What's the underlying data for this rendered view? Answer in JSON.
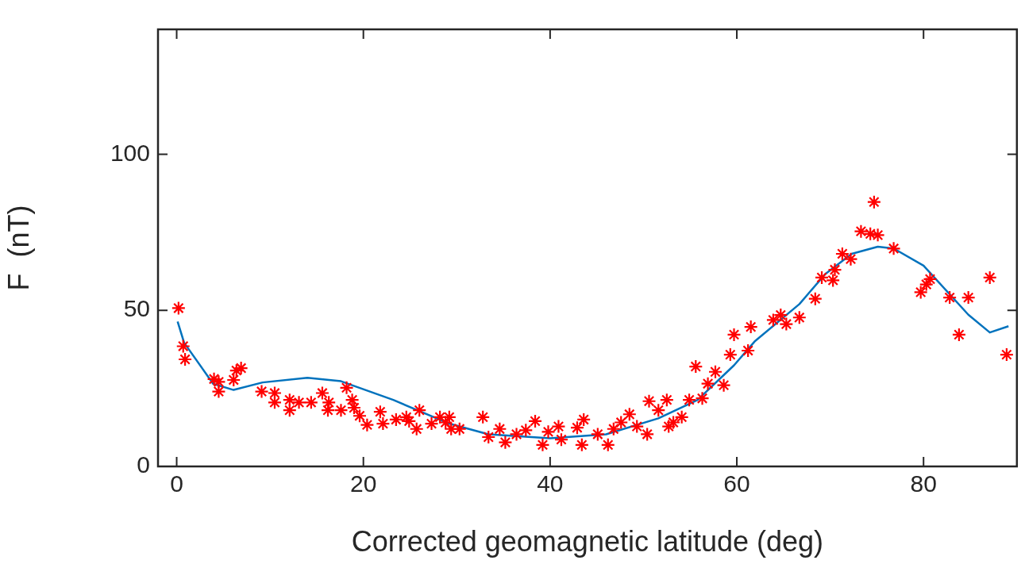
{
  "chart_data": {
    "type": "scatter",
    "xlabel": "Corrected geomagnetic latitude (deg)",
    "ylabel": "F  (nT)",
    "xlim": [
      -2,
      90
    ],
    "ylim": [
      0,
      140
    ],
    "xticks": [
      0,
      20,
      40,
      60,
      80
    ],
    "yticks": [
      0,
      50,
      100
    ],
    "grid": false,
    "legend": false,
    "marker": "cross",
    "series": [
      {
        "color": "#ff0000",
        "x": [
          0.2,
          0.7,
          0.9,
          4.0,
          4.5,
          4.5,
          6.1,
          6.4,
          6.9,
          9.1,
          10.5,
          10.5,
          12.1,
          12.1,
          13.1,
          14.4,
          15.6,
          16.3,
          16.2,
          17.6,
          18.2,
          18.8,
          19.0,
          19.6,
          20.4,
          21.8,
          22.1,
          23.5,
          24.6,
          24.9,
          25.7,
          26.0,
          27.3,
          28.2,
          28.8,
          29.4,
          29.2,
          30.3,
          32.8,
          33.4,
          34.6,
          35.2,
          36.4,
          37.4,
          38.4,
          39.2,
          39.8,
          40.9,
          41.2,
          42.9,
          43.6,
          43.4,
          45.1,
          46.2,
          46.8,
          47.6,
          48.5,
          49.3,
          50.4,
          50.6,
          51.6,
          52.5,
          52.7,
          53.2,
          54.1,
          54.9,
          56.3,
          57.7,
          58.6,
          55.6,
          56.9,
          59.3,
          59.7,
          61.2,
          61.5,
          63.9,
          64.7,
          65.3,
          66.7,
          68.4,
          69.1,
          70.3,
          70.5,
          71.3,
          72.2,
          73.3,
          74.3,
          75.1,
          74.7,
          76.8,
          79.7,
          80.3,
          80.7,
          82.8,
          84.8,
          83.8,
          87.1,
          88.9
        ],
        "values": [
          50.7,
          38.5,
          34.3,
          28,
          27.1,
          24,
          27.7,
          30.7,
          31.5,
          24,
          23.5,
          20.5,
          21.3,
          18,
          20.5,
          20.5,
          23.5,
          20.5,
          18,
          18,
          25.2,
          21.3,
          18.8,
          16.2,
          13.3,
          17.5,
          13.7,
          15,
          15.8,
          14.5,
          12,
          18,
          13.7,
          15.8,
          14.1,
          12,
          15.8,
          12,
          15.8,
          9.4,
          12,
          7.7,
          10.3,
          11.6,
          14.5,
          6.9,
          11.1,
          12.8,
          8.6,
          12.4,
          15,
          6.9,
          10.3,
          6.9,
          12,
          14.1,
          16.7,
          12.8,
          10.3,
          20.9,
          18,
          21.3,
          12.8,
          14.1,
          15.8,
          21.3,
          21.8,
          30.3,
          26,
          32,
          26.5,
          35.8,
          42.2,
          37.1,
          44.7,
          46.9,
          48.5,
          45.6,
          47.7,
          53.7,
          60.5,
          59.6,
          63,
          68.1,
          66.4,
          75.3,
          74.5,
          74.1,
          84.7,
          69.8,
          55.8,
          58.3,
          60,
          54.1,
          54.1,
          42.2,
          60.5,
          35.8
        ]
      },
      {
        "type": "line",
        "color": "#0072bd",
        "marker": "none",
        "x": [
          0.1,
          0.8,
          3.9,
          6.1,
          9.2,
          14,
          17.6,
          23.2,
          29.2,
          33.4,
          40,
          46,
          51.6,
          55.8,
          59.7,
          61.9,
          66.7,
          69.5,
          72.3,
          75.1,
          76.8,
          80,
          84.8,
          87.1,
          89.1
        ],
        "values": [
          46.4,
          39.6,
          26.5,
          24.5,
          26.9,
          28.4,
          27.3,
          21.3,
          13.7,
          10.3,
          9,
          10.3,
          15.4,
          21.3,
          32.4,
          40,
          52,
          61.7,
          68.1,
          70.4,
          69.8,
          64.3,
          48.6,
          42.9,
          44.9
        ]
      }
    ]
  }
}
